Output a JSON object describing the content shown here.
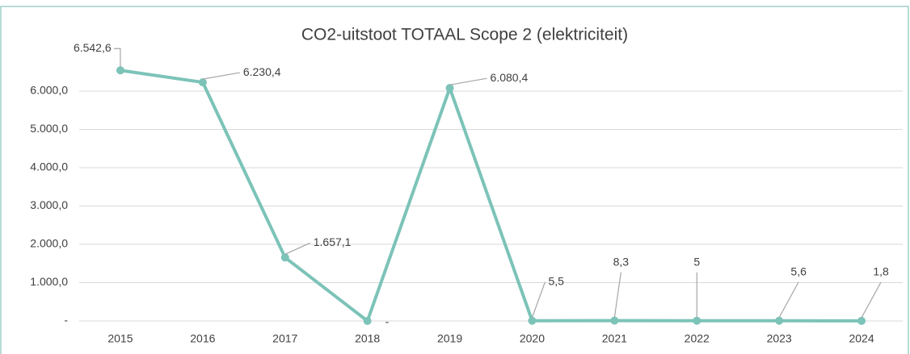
{
  "chart_data": {
    "type": "line",
    "title": "CO2-uitstoot TOTAAL Scope 2 (elektriciteit)",
    "categories": [
      "2015",
      "2016",
      "2017",
      "2018",
      "2019",
      "2020",
      "2021",
      "2022",
      "2023",
      "2024"
    ],
    "series": [
      {
        "color": "#7cc3b8",
        "values": [
          6542.6,
          6230.4,
          1657.1,
          0,
          6080.4,
          5.5,
          8.3,
          5,
          5.6,
          1.8
        ],
        "value_labels": [
          "6.542,6",
          "6.230,4",
          "1.657,1",
          "-",
          "6.080,4",
          "5,5",
          "8,3",
          "5",
          "5,6",
          "1,8"
        ]
      }
    ],
    "ylim": [
      0,
      7000
    ],
    "yticks": [
      {
        "value": 0,
        "label": "-"
      },
      {
        "value": 1000,
        "label": "1.000,0"
      },
      {
        "value": 2000,
        "label": "2.000,0"
      },
      {
        "value": 3000,
        "label": "3.000,0"
      },
      {
        "value": 4000,
        "label": "4.000,0"
      },
      {
        "value": 5000,
        "label": "5.000,0"
      },
      {
        "value": 6000,
        "label": "6.000,0"
      }
    ],
    "grid": true
  }
}
